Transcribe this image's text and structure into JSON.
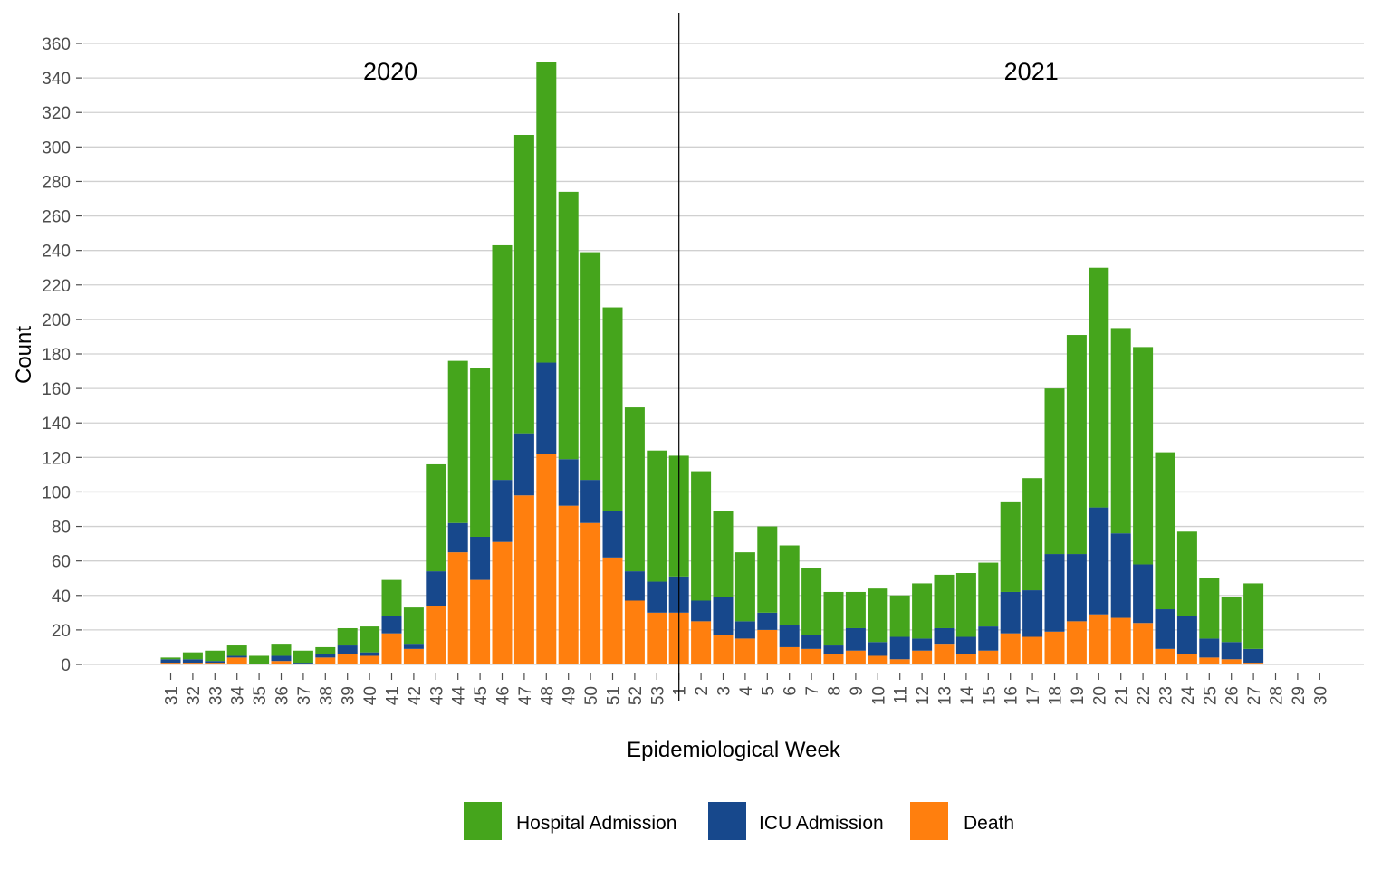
{
  "chart_data": {
    "type": "bar",
    "stacked": true,
    "xlabel": "Epidemiological Week",
    "ylabel": "Count",
    "ylim": [
      0,
      360
    ],
    "ytick_step": 20,
    "grid": "horizontal",
    "legend_position": "bottom",
    "categories": [
      "31",
      "32",
      "33",
      "34",
      "35",
      "36",
      "37",
      "38",
      "39",
      "40",
      "41",
      "42",
      "43",
      "44",
      "45",
      "46",
      "47",
      "48",
      "49",
      "50",
      "51",
      "52",
      "53",
      "1",
      "2",
      "3",
      "4",
      "5",
      "6",
      "7",
      "8",
      "9",
      "10",
      "11",
      "12",
      "13",
      "14",
      "15",
      "16",
      "17",
      "18",
      "19",
      "20",
      "21",
      "22",
      "23",
      "24",
      "25",
      "26",
      "27",
      "28",
      "29",
      "30"
    ],
    "year_divider_before": "1",
    "annotations": [
      {
        "text": "2020",
        "at_category": "40"
      },
      {
        "text": "2021",
        "at_category": "16"
      }
    ],
    "series": [
      {
        "name": "Death",
        "color": "#FF7F0E",
        "values": [
          1,
          1,
          1,
          4,
          0,
          2,
          0,
          4,
          6,
          5,
          18,
          9,
          34,
          65,
          49,
          71,
          98,
          122,
          92,
          82,
          62,
          37,
          30,
          30,
          25,
          17,
          15,
          20,
          10,
          9,
          6,
          8,
          5,
          3,
          8,
          12,
          6,
          8,
          18,
          16,
          19,
          25,
          29,
          27,
          24,
          9,
          6,
          4,
          3,
          1,
          0,
          0,
          0
        ]
      },
      {
        "name": "ICU Admission",
        "color": "#17488C",
        "values": [
          2,
          2,
          1,
          1,
          0,
          3,
          1,
          2,
          5,
          2,
          10,
          3,
          20,
          17,
          25,
          36,
          36,
          53,
          27,
          25,
          27,
          17,
          18,
          21,
          12,
          22,
          10,
          10,
          13,
          8,
          5,
          13,
          8,
          13,
          7,
          9,
          10,
          14,
          24,
          27,
          45,
          39,
          62,
          49,
          34,
          23,
          22,
          11,
          10,
          8,
          0,
          0,
          0
        ]
      },
      {
        "name": "Hospital Admission",
        "color": "#45A51C",
        "values": [
          1,
          4,
          6,
          6,
          5,
          7,
          7,
          4,
          10,
          15,
          21,
          21,
          62,
          94,
          98,
          136,
          173,
          174,
          155,
          132,
          118,
          95,
          76,
          70,
          75,
          50,
          40,
          50,
          46,
          39,
          31,
          21,
          31,
          24,
          32,
          31,
          37,
          37,
          52,
          65,
          96,
          127,
          139,
          119,
          126,
          91,
          49,
          35,
          26,
          38,
          0,
          0,
          0
        ]
      }
    ]
  },
  "legend": [
    {
      "label": "Hospital Admission",
      "color": "#45A51C"
    },
    {
      "label": "ICU Admission",
      "color": "#17488C"
    },
    {
      "label": "Death",
      "color": "#FF7F0E"
    }
  ]
}
